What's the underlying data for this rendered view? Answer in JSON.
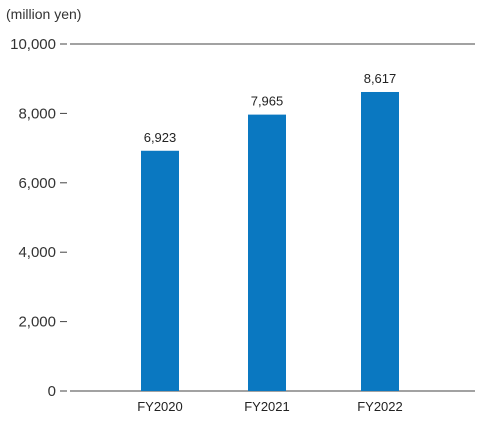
{
  "chart_data": {
    "type": "bar",
    "unit_label": "(million yen)",
    "categories": [
      "FY2020",
      "FY2021",
      "FY2022"
    ],
    "values": [
      6923,
      7965,
      8617
    ],
    "value_labels": [
      "6,923",
      "7,965",
      "8,617"
    ],
    "ylim": [
      0,
      10000
    ],
    "yticks": [
      0,
      2000,
      4000,
      6000,
      8000,
      10000
    ],
    "ytick_labels": [
      "0",
      "2,000",
      "4,000",
      "6,000",
      "8,000",
      "10,000"
    ],
    "bar_color": "#0a78c1",
    "grid": false,
    "legend": false
  }
}
